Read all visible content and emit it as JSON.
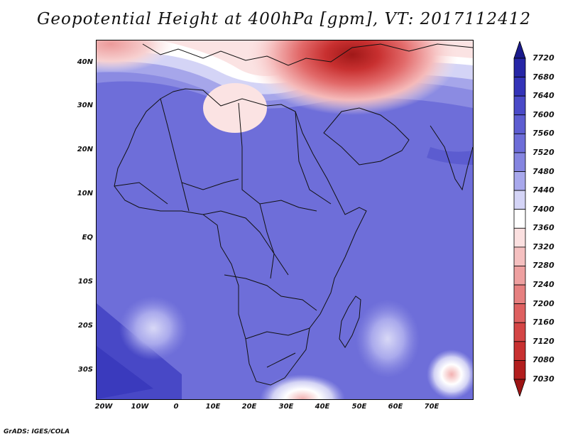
{
  "title": "Geopotential Height at 400hPa [gpm], VT: 2017112412",
  "credit": "GrADS: IGES/COLA",
  "map": {
    "lon_range": [
      -25,
      80
    ],
    "lat_range": [
      -37,
      45
    ],
    "lat_labels": [
      "40N",
      "30N",
      "20N",
      "10N",
      "EQ",
      "10S",
      "20S",
      "30S"
    ],
    "lon_labels": [
      "20W",
      "10W",
      "0",
      "10E",
      "20E",
      "30E",
      "40E",
      "50E",
      "60E",
      "70E"
    ]
  },
  "colorbar": {
    "levels": [
      "7720",
      "7680",
      "7640",
      "7600",
      "7560",
      "7520",
      "7480",
      "7440",
      "7400",
      "7360",
      "7320",
      "7280",
      "7240",
      "7200",
      "7160",
      "7120",
      "7080",
      "7030"
    ],
    "colors": [
      "#1a1a8c",
      "#2626a6",
      "#3333b8",
      "#4a4ac8",
      "#5d5dd1",
      "#6d6dd8",
      "#8585e0",
      "#a8a8ec",
      "#d4d4f6",
      "#ffffff",
      "#fbe0e0",
      "#f5c0c0",
      "#eea0a0",
      "#e68080",
      "#de6060",
      "#d44545",
      "#c83030",
      "#b21e1e",
      "#9c1414"
    ]
  }
}
